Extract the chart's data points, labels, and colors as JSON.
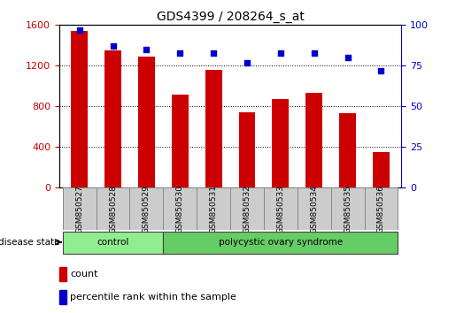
{
  "title": "GDS4399 / 208264_s_at",
  "samples": [
    "GSM850527",
    "GSM850528",
    "GSM850529",
    "GSM850530",
    "GSM850531",
    "GSM850532",
    "GSM850533",
    "GSM850534",
    "GSM850535",
    "GSM850536"
  ],
  "counts": [
    1540,
    1350,
    1290,
    920,
    1160,
    740,
    870,
    930,
    730,
    355
  ],
  "percentiles": [
    97,
    87,
    85,
    83,
    83,
    77,
    83,
    83,
    80,
    72
  ],
  "bar_color": "#cc0000",
  "dot_color": "#0000cc",
  "ylim_left": [
    0,
    1600
  ],
  "ylim_right": [
    0,
    100
  ],
  "yticks_left": [
    0,
    400,
    800,
    1200,
    1600
  ],
  "yticks_right": [
    0,
    25,
    50,
    75,
    100
  ],
  "groups": [
    {
      "label": "control",
      "start": 0,
      "end": 3,
      "color": "#90ee90"
    },
    {
      "label": "polycystic ovary syndrome",
      "start": 3,
      "end": 10,
      "color": "#66cc66"
    }
  ],
  "disease_state_label": "disease state",
  "legend_count_label": "count",
  "legend_percentile_label": "percentile rank within the sample",
  "tick_label_color_left": "#cc0000",
  "tick_label_color_right": "#0000cc",
  "sample_box_color": "#cccccc"
}
